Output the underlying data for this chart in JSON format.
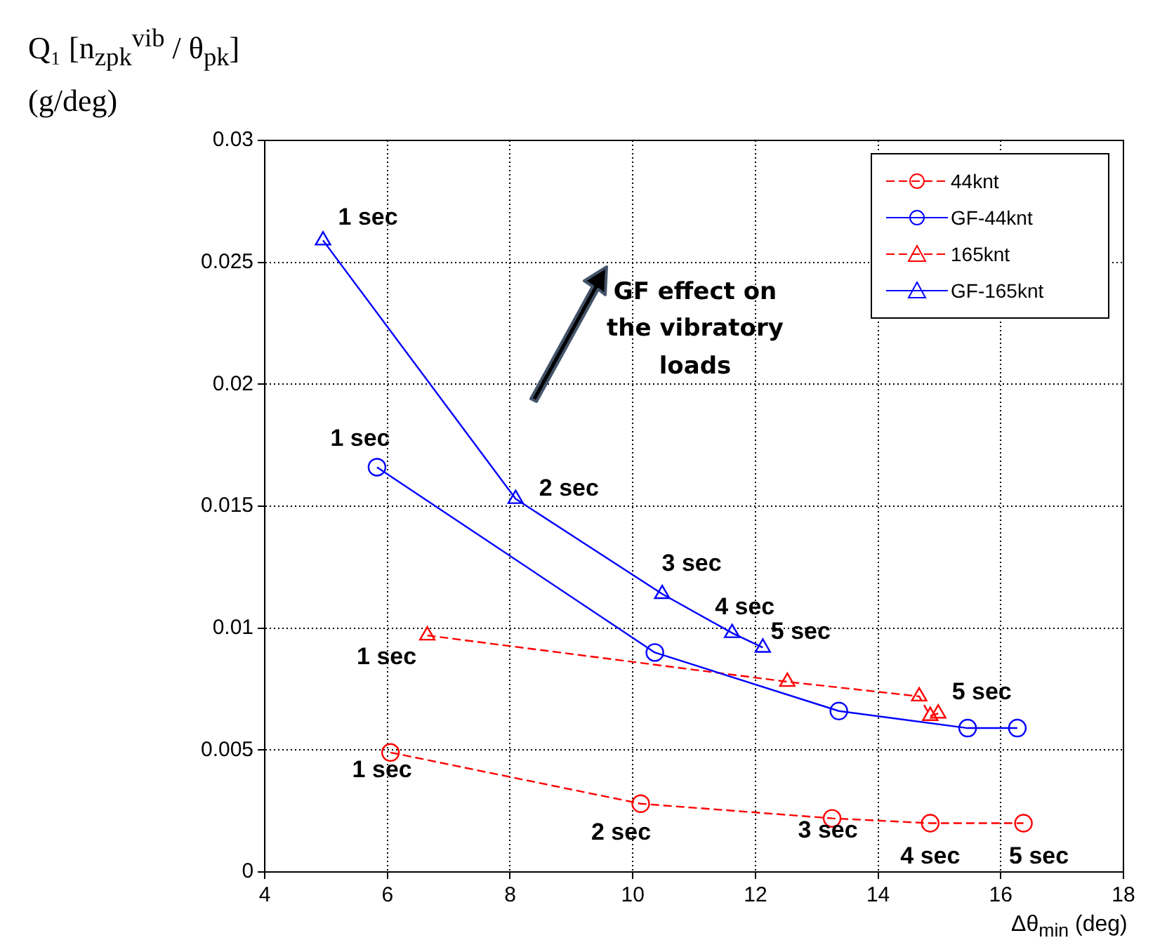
{
  "chart_data": {
    "type": "line",
    "ylabel": "Q₁ [n$_{zpk}$$^{vib}$ / θ$_{pk}$] (g/deg)",
    "xlabel": "Δθ$_{min}$ (deg)",
    "xlim": [
      4,
      18
    ],
    "xticks": [
      4,
      6,
      8,
      10,
      12,
      14,
      16,
      18
    ],
    "ylim": [
      0,
      0.03
    ],
    "yticks": [
      0,
      0.005,
      0.01,
      0.015,
      0.02,
      0.025,
      0.03
    ],
    "grid": true,
    "legend": "top right",
    "series": [
      {
        "name": "44knt",
        "color": "#ff0000",
        "marker": "circle",
        "line_style": "dashed",
        "x": [
          6.05,
          10.13,
          13.25,
          14.85,
          16.37
        ],
        "values": [
          0.0049,
          0.0028,
          0.0022,
          0.002,
          0.002
        ]
      },
      {
        "name": "GF-44knt",
        "color": "#0000ff",
        "marker": "circle",
        "line_style": "solid",
        "x": [
          5.83,
          10.36,
          13.36,
          15.46,
          16.27
        ],
        "values": [
          0.0166,
          0.009,
          0.0066,
          0.0059,
          0.0059
        ]
      },
      {
        "name": "165knt",
        "color": "#ff0000",
        "marker": "triangle",
        "line_style": "dashed",
        "x": [
          6.65,
          12.52,
          14.67,
          14.85,
          14.98
        ],
        "values": [
          0.0097,
          0.0078,
          0.0072,
          0.0064,
          0.0065
        ]
      },
      {
        "name": "GF-165knt",
        "color": "#0000ff",
        "marker": "triangle",
        "line_style": "solid",
        "x": [
          4.95,
          8.09,
          10.48,
          11.62,
          12.12
        ],
        "values": [
          0.0259,
          0.0153,
          0.0114,
          0.0098,
          0.0092
        ]
      }
    ],
    "annotations": [
      {
        "text": "1 sec",
        "x": 4.95,
        "y": 0.0259
      },
      {
        "text": "1 sec",
        "x": 5.83,
        "y": 0.0166
      },
      {
        "text": "2 sec",
        "x": 8.09,
        "y": 0.0153
      },
      {
        "text": "3 sec",
        "x": 10.48,
        "y": 0.0114
      },
      {
        "text": "4 sec",
        "x": 11.62,
        "y": 0.0098
      },
      {
        "text": "5 sec",
        "x": 12.12,
        "y": 0.0092
      },
      {
        "text": "1 sec",
        "x": 6.65,
        "y": 0.0097
      },
      {
        "text": "5 sec",
        "x": 14.98,
        "y": 0.0065
      },
      {
        "text": "1 sec",
        "x": 6.05,
        "y": 0.0049
      },
      {
        "text": "2 sec",
        "x": 10.13,
        "y": 0.0028
      },
      {
        "text": "3 sec",
        "x": 13.25,
        "y": 0.0022
      },
      {
        "text": "4 sec",
        "x": 14.85,
        "y": 0.002
      },
      {
        "text": "5 sec",
        "x": 16.37,
        "y": 0.002
      },
      "GF effect on the vibratory loads"
    ]
  }
}
